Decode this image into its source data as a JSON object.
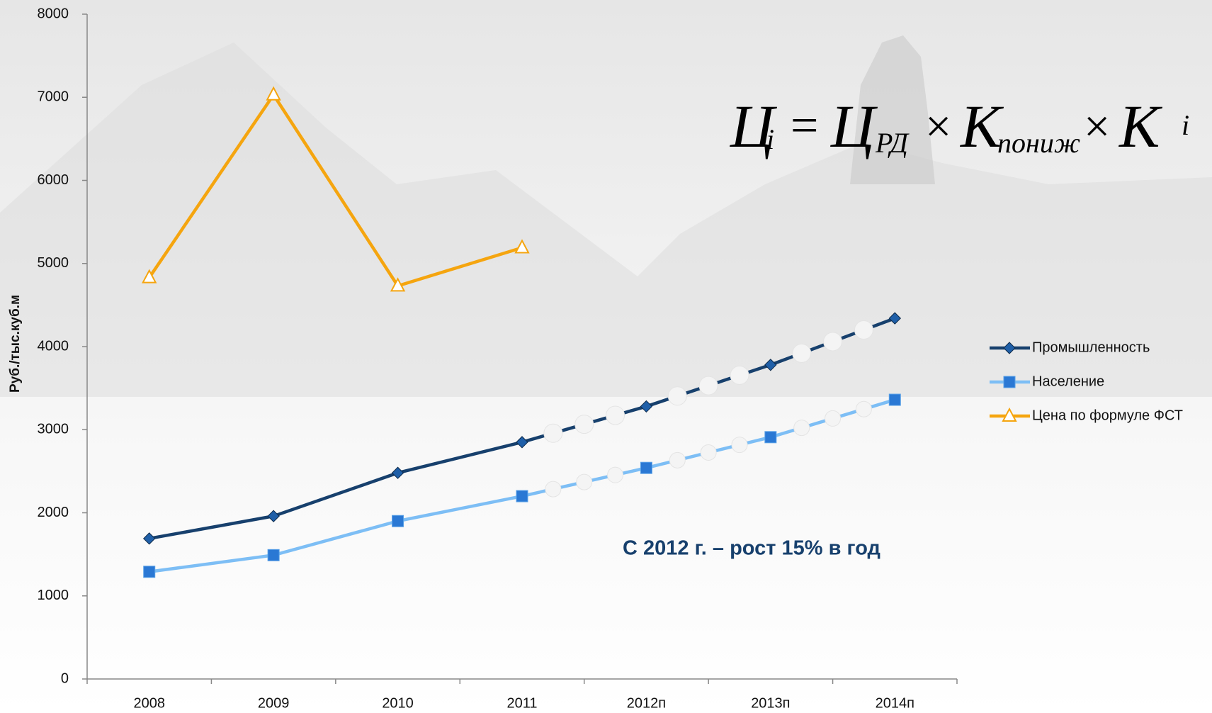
{
  "chart_data": {
    "type": "line",
    "y_label": "Руб./тыс.куб.м",
    "categories": [
      "2008",
      "2009",
      "2010",
      "2011",
      "2012п",
      "2013п",
      "2014п"
    ],
    "series": [
      {
        "name": "Промышленность",
        "color": "#17406d",
        "marker": "diamond",
        "marker_color": "#1f5fa8",
        "values": [
          1690,
          1960,
          2480,
          2850,
          3280,
          3780,
          4340
        ]
      },
      {
        "name": "Население",
        "color": "#7dbef5",
        "marker": "square",
        "marker_color": "#2a78d4",
        "values": [
          1290,
          1490,
          1900,
          2200,
          2540,
          2910,
          3360
        ]
      },
      {
        "name": "Цена по формуле ФСТ",
        "color": "#f5a50f",
        "marker": "triangle",
        "marker_color": "#ffffff",
        "values": [
          4830,
          7030,
          4730,
          5190,
          null,
          null,
          null
        ]
      }
    ],
    "forecast_start": 3,
    "ylim": [
      0,
      8000
    ],
    "yticks": [
      0,
      1000,
      2000,
      3000,
      4000,
      5000,
      6000,
      7000,
      8000
    ],
    "legend": "right",
    "annotation": "С 2012 г. – рост 15% в год",
    "formula": [
      "Ц",
      "i",
      "=",
      "Ц",
      "РД",
      "×",
      "K",
      "пониж",
      "×",
      "K",
      "i"
    ]
  }
}
